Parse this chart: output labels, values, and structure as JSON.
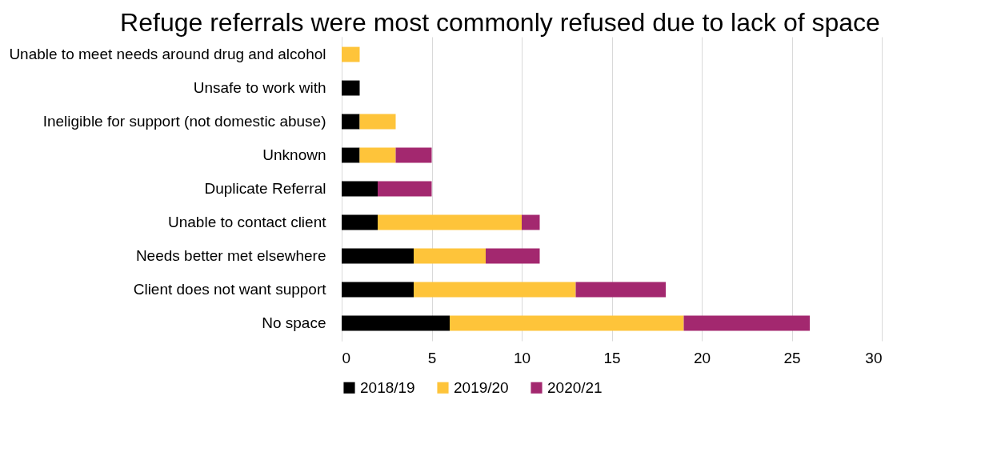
{
  "chart_data": {
    "type": "bar",
    "orientation": "horizontal",
    "stacked": true,
    "title": "Refuge referrals were most commonly refused due to lack of space",
    "categories": [
      "Unable to meet needs around drug and alcohol",
      "Unsafe to work with",
      "Ineligible for support (not domestic abuse)",
      "Unknown",
      "Duplicate Referral",
      "Unable to contact client",
      "Needs better met elsewhere ",
      "Client does not want support",
      "No space"
    ],
    "series": [
      {
        "name": "2018/19",
        "color": "#000000",
        "values": [
          0,
          1,
          1,
          1,
          2,
          2,
          4,
          4,
          6
        ]
      },
      {
        "name": "2019/20",
        "color": "#fec43a",
        "values": [
          1,
          0,
          2,
          2,
          0,
          8,
          4,
          9,
          13
        ]
      },
      {
        "name": "2020/21",
        "color": "#a3286f",
        "values": [
          0,
          0,
          0,
          2,
          3,
          1,
          3,
          5,
          7
        ]
      }
    ],
    "xlim": [
      0,
      30
    ],
    "xticks": [
      0,
      5,
      10,
      15,
      20,
      25,
      30
    ],
    "grid": "x",
    "legend": "bottom"
  }
}
